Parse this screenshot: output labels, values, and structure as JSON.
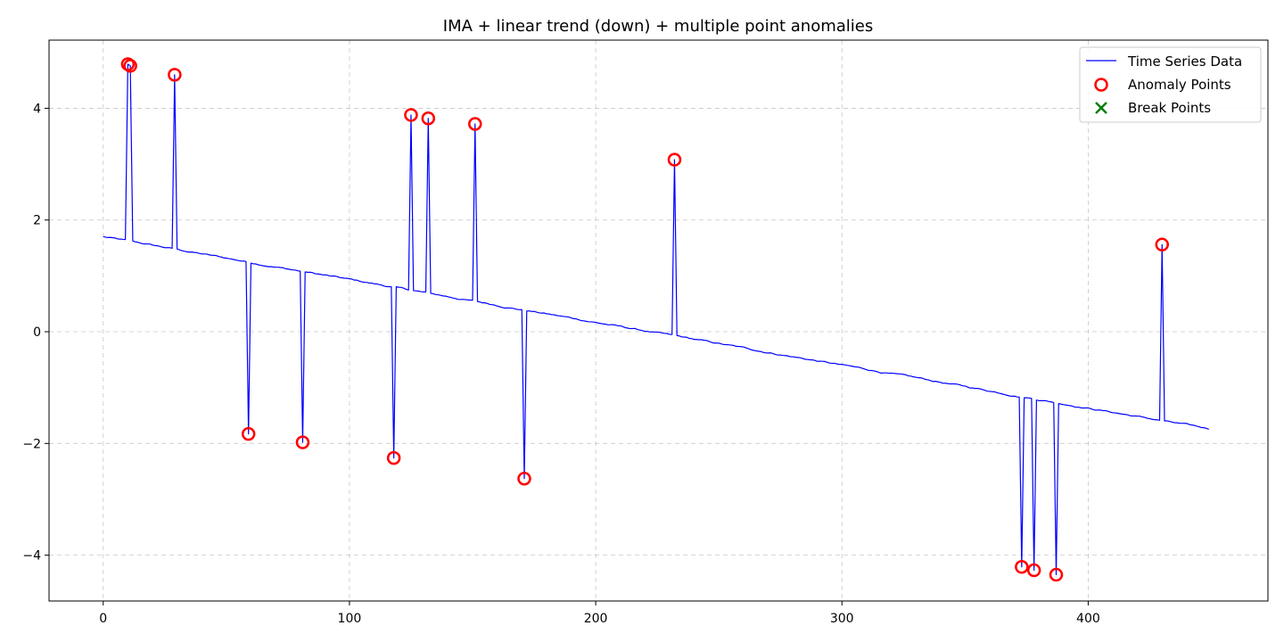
{
  "chart_data": {
    "type": "line",
    "title": "IMA + linear trend (down) + multiple point anomalies",
    "xlabel": "",
    "ylabel": "",
    "xlim": [
      -22,
      473
    ],
    "ylim": [
      -4.82,
      5.22
    ],
    "x_ticks": [
      0,
      100,
      200,
      300,
      400
    ],
    "y_ticks": [
      -4,
      -2,
      0,
      2,
      4
    ],
    "grid": true,
    "legend_position": "top-right",
    "colors": {
      "line": "#0000ff",
      "anomaly": "#ff0000",
      "break": "#008000"
    },
    "series": [
      {
        "name": "Time Series Data",
        "kind": "line",
        "trend": {
          "x_start": 0,
          "x_end": 449,
          "y_start": 1.7,
          "y_end": -1.74
        },
        "anomalies": [
          {
            "x": 10,
            "y": 4.79
          },
          {
            "x": 11,
            "y": 4.76
          },
          {
            "x": 29,
            "y": 4.6
          },
          {
            "x": 59,
            "y": -1.83
          },
          {
            "x": 81,
            "y": -1.98
          },
          {
            "x": 118,
            "y": -2.26
          },
          {
            "x": 125,
            "y": 3.88
          },
          {
            "x": 132,
            "y": 3.82
          },
          {
            "x": 151,
            "y": 3.72
          },
          {
            "x": 171,
            "y": -2.63
          },
          {
            "x": 232,
            "y": 3.08
          },
          {
            "x": 373,
            "y": -4.21
          },
          {
            "x": 378,
            "y": -4.27
          },
          {
            "x": 387,
            "y": -4.35
          },
          {
            "x": 430,
            "y": 1.56
          }
        ]
      },
      {
        "name": "Anomaly Points",
        "kind": "scatter",
        "points": [
          {
            "x": 10,
            "y": 4.79
          },
          {
            "x": 11,
            "y": 4.76
          },
          {
            "x": 29,
            "y": 4.6
          },
          {
            "x": 59,
            "y": -1.83
          },
          {
            "x": 81,
            "y": -1.98
          },
          {
            "x": 118,
            "y": -2.26
          },
          {
            "x": 125,
            "y": 3.88
          },
          {
            "x": 132,
            "y": 3.82
          },
          {
            "x": 151,
            "y": 3.72
          },
          {
            "x": 171,
            "y": -2.63
          },
          {
            "x": 232,
            "y": 3.08
          },
          {
            "x": 373,
            "y": -4.21
          },
          {
            "x": 378,
            "y": -4.27
          },
          {
            "x": 387,
            "y": -4.35
          },
          {
            "x": 430,
            "y": 1.56
          }
        ]
      },
      {
        "name": "Break Points",
        "kind": "scatter",
        "points": []
      }
    ]
  }
}
